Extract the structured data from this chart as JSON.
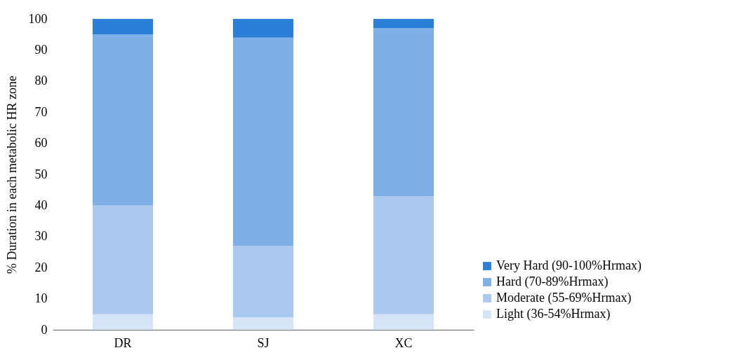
{
  "chart_data": {
    "type": "bar",
    "stacked": true,
    "ylabel": "% Duration in each metabolic HR zone",
    "categories": [
      "DR",
      "SJ",
      "XC"
    ],
    "series": [
      {
        "name": "Light (36-54%Hrmax)",
        "color": "#d5e4f6",
        "values": [
          5,
          4,
          5
        ]
      },
      {
        "name": "Moderate (55-69%Hrmax)",
        "color": "#a9caee",
        "values": [
          35,
          23,
          38
        ]
      },
      {
        "name": "Hard (70-89%Hrmax)",
        "color": "#7fb0e5",
        "values": [
          55,
          67,
          54
        ]
      },
      {
        "name": "Very Hard (90-100%Hrmax)",
        "color": "#2b7fd7",
        "values": [
          5,
          6,
          3
        ]
      }
    ],
    "ylim": [
      0,
      100
    ],
    "yticks": [
      0,
      10,
      20,
      30,
      40,
      50,
      60,
      70,
      80,
      90,
      100
    ],
    "grid": false,
    "legend": "bottom right"
  }
}
